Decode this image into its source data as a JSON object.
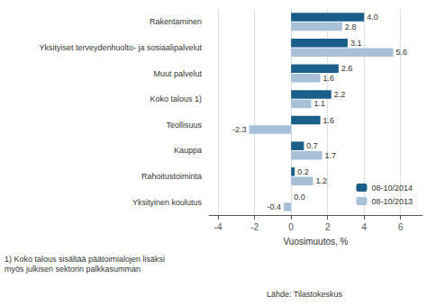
{
  "chart_data": {
    "type": "bar",
    "orientation": "horizontal",
    "categories": [
      "Rakentaminen",
      "Yksityiset terveydenhuolto- ja sosiaalipalvelut",
      "Muut palvelut",
      "Koko talous 1)",
      "Teollisuus",
      "Kauppa",
      "Rahoitustoiminta",
      "Yksityinen koulutus"
    ],
    "series": [
      {
        "name": "08-10/2014",
        "color": "#1a5e8a",
        "values": [
          4.0,
          3.1,
          2.6,
          2.2,
          1.6,
          0.7,
          0.2,
          0.0
        ],
        "value_labels": [
          "4.0",
          "3.1",
          "2.6",
          "2.2",
          "1.6",
          "0.7",
          "0.2",
          "0.0"
        ]
      },
      {
        "name": "08-10/2013",
        "color": "#a8bfd8",
        "values": [
          2.8,
          5.6,
          1.6,
          1.1,
          -2.3,
          1.7,
          1.2,
          -0.4
        ],
        "value_labels": [
          "2.8",
          "5.6",
          "1.6",
          "1.1",
          "-2.3",
          "1.7",
          "1.2",
          "-0.4"
        ]
      }
    ],
    "xlabel": "Vuosimuutos, %",
    "xlim": [
      -4.5,
      7.2
    ],
    "xticks": [
      -4,
      -2,
      0,
      2,
      4,
      6
    ],
    "grid": true,
    "legend": "lower right",
    "data_labels": true,
    "annotations": [
      "1) Koko talous sisältää päätoimialojen lisäksi\nmyös julkisen sektorin palkkasumman",
      "Lähde: Tilastokeskus"
    ]
  }
}
